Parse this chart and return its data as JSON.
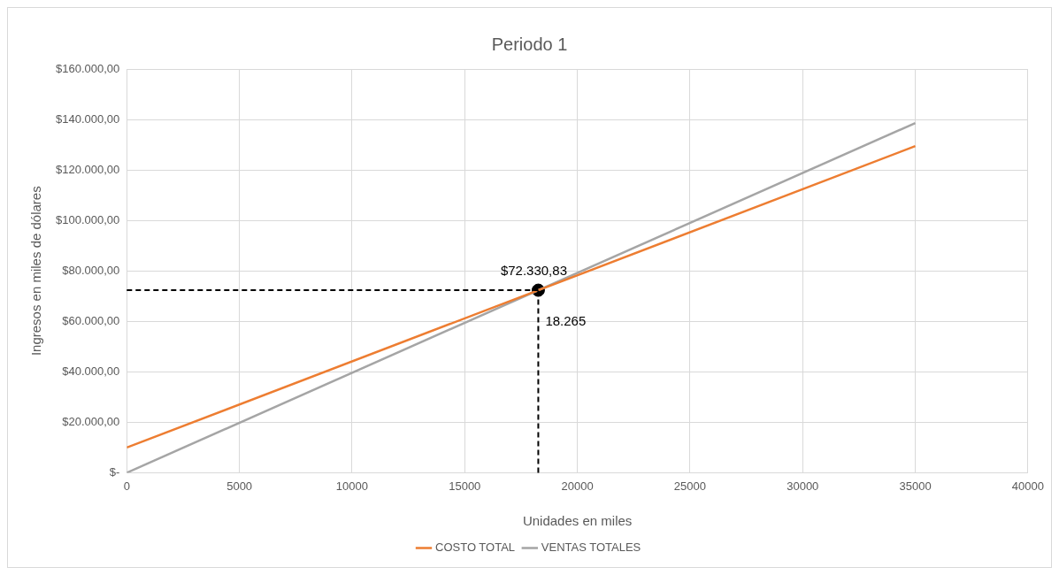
{
  "chart_data": {
    "type": "line",
    "title": "Periodo 1",
    "xlabel": "Unidades en miles",
    "ylabel": "Ingresos en miles de dólares",
    "series": [
      {
        "name": "COSTO TOTAL",
        "color": "#ed7d31",
        "x": [
          0,
          35000
        ],
        "values": [
          10000,
          129440
        ]
      },
      {
        "name": "VENTAS TOTALES",
        "color": "#a5a5a5",
        "x": [
          0,
          35000
        ],
        "values": [
          0,
          138600
        ]
      },
      {
        "type": "scatter",
        "color": "#000000",
        "x": [
          18265
        ],
        "values": [
          72330.83
        ],
        "marker": "circle"
      }
    ],
    "xlim": [
      0,
      40000
    ],
    "xticks": [
      0,
      5000,
      10000,
      15000,
      20000,
      25000,
      30000,
      35000,
      40000
    ],
    "ylim": [
      0,
      160000
    ],
    "yticks": [
      {
        "value": 0,
        "label": "$-"
      },
      {
        "value": 20000,
        "label": "$20.000,00"
      },
      {
        "value": 40000,
        "label": "$40.000,00"
      },
      {
        "value": 60000,
        "label": "$60.000,00"
      },
      {
        "value": 80000,
        "label": "$80.000,00"
      },
      {
        "value": 100000,
        "label": "$100.000,00"
      },
      {
        "value": 120000,
        "label": "$120.000,00"
      },
      {
        "value": 140000,
        "label": "$140.000,00"
      },
      {
        "value": 160000,
        "label": "$160.000,00"
      }
    ],
    "ref_lines": [
      {
        "axis": "y",
        "value": 72330.83,
        "color": "#000000",
        "line_style": "dashed"
      },
      {
        "axis": "x",
        "value": 18265,
        "color": "#000000",
        "line_style": "dashed"
      }
    ],
    "annotations": [
      {
        "text": "$72.330,83",
        "x": 18265,
        "y": 72330.83
      },
      {
        "text": "18.265",
        "x": 18265,
        "y": 72330.83
      }
    ],
    "grid": true,
    "legend": "bottom",
    "marker": "none",
    "line_style": "solid"
  }
}
